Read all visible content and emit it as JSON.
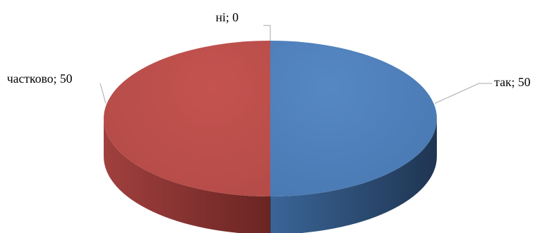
{
  "chart_data": {
    "type": "pie",
    "style": "3d",
    "slices": [
      {
        "label": "так",
        "value": 50,
        "display": "так; 50",
        "color": "#4f81bd",
        "side_color": "#2a4a72"
      },
      {
        "label": "частково",
        "value": 50,
        "display": "частково; 50",
        "color": "#c0504d",
        "side_color": "#7d2d2b"
      },
      {
        "label": "ні",
        "value": 0,
        "display": "ні; 0",
        "color": "#9bbb59",
        "side_color": "#5f7a30"
      }
    ],
    "data_labels": "category; value",
    "legend": "none"
  }
}
